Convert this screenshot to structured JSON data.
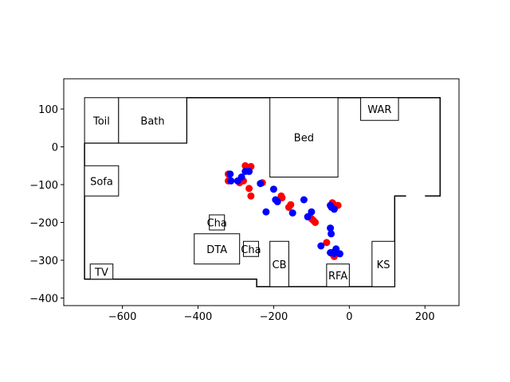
{
  "chart_data": {
    "type": "scatter",
    "title": "",
    "xlabel": "",
    "ylabel": "",
    "xlim": [
      -755,
      290
    ],
    "ylim": [
      -420,
      180
    ],
    "xticks": [
      -600,
      -400,
      -200,
      0,
      200
    ],
    "yticks": [
      100,
      0,
      -100,
      -200,
      -300,
      -400
    ],
    "xtick_labels": [
      "−600",
      "−400",
      "−200",
      "0",
      "200"
    ],
    "ytick_labels": [
      "100",
      "0",
      "−100",
      "−200",
      "−300",
      "−400"
    ],
    "grid": false,
    "colors": {
      "series_a": "#ff0000",
      "series_b": "#0000ff",
      "walls": "#000000"
    },
    "walls": [
      [
        [
          -700,
          10
        ],
        [
          -700,
          -350
        ],
        [
          -245,
          -350
        ],
        [
          -245,
          -370
        ],
        [
          120,
          -370
        ],
        [
          120,
          -130
        ],
        [
          150,
          -130
        ]
      ],
      [
        [
          -700,
          10
        ],
        [
          -430,
          10
        ],
        [
          -430,
          130
        ],
        [
          240,
          130
        ],
        [
          240,
          -130
        ],
        [
          200,
          -130
        ]
      ]
    ],
    "rooms": [
      {
        "label": "Toil",
        "x0": -700,
        "x1": -610,
        "y0": 10,
        "y1": 130
      },
      {
        "label": "Bath",
        "x0": -610,
        "x1": -430,
        "y0": 10,
        "y1": 130
      },
      {
        "label": "Bed",
        "x0": -210,
        "x1": -30,
        "y0": -80,
        "y1": 130
      },
      {
        "label": "WAR",
        "x0": 30,
        "x1": 130,
        "y0": 70,
        "y1": 130
      },
      {
        "label": "Sofa",
        "x0": -700,
        "x1": -610,
        "y0": -130,
        "y1": -50
      },
      {
        "label": "Cha",
        "x0": -370,
        "x1": -330,
        "y0": -220,
        "y1": -180
      },
      {
        "label": "DTA",
        "x0": -410,
        "x1": -290,
        "y0": -310,
        "y1": -230
      },
      {
        "label": "Cha",
        "x0": -280,
        "x1": -240,
        "y0": -290,
        "y1": -250
      },
      {
        "label": "CB",
        "x0": -210,
        "x1": -160,
        "y0": -370,
        "y1": -250
      },
      {
        "label": "RFA",
        "x0": -60,
        "x1": 0,
        "y0": -370,
        "y1": -310
      },
      {
        "label": "KS",
        "x0": 60,
        "x1": 120,
        "y0": -370,
        "y1": -250
      },
      {
        "label": "TV",
        "x0": -685,
        "x1": -625,
        "y0": -350,
        "y1": -310
      }
    ],
    "series": [
      {
        "color": "#ff0000",
        "x": [
          -320,
          -320,
          -290,
          -275,
          -260,
          -280,
          -265,
          -260,
          -230,
          -180,
          -178,
          -155,
          -160,
          -100,
          -95,
          -90,
          -60,
          -45,
          -43,
          -45,
          -45,
          -30,
          -40,
          -40
        ],
        "y": [
          -72,
          -90,
          -95,
          -50,
          -52,
          -90,
          -110,
          -130,
          -95,
          -130,
          -135,
          -153,
          -160,
          -190,
          -195,
          -200,
          -253,
          -148,
          -150,
          -280,
          -283,
          -155,
          -285,
          -290
        ]
      },
      {
        "color": "#0000ff",
        "x": [
          -315,
          -313,
          -295,
          -285,
          -275,
          -265,
          -235,
          -220,
          -200,
          -195,
          -190,
          -150,
          -120,
          -110,
          -100,
          -75,
          -50,
          -48,
          -50,
          -47,
          -40,
          -45,
          -40,
          -50,
          -35,
          -25
        ],
        "y": [
          -72,
          -90,
          -90,
          -80,
          -65,
          -65,
          -97,
          -172,
          -112,
          -140,
          -145,
          -175,
          -140,
          -185,
          -172,
          -262,
          -215,
          -230,
          -155,
          -160,
          -165,
          -280,
          -282,
          -280,
          -270,
          -283
        ]
      }
    ]
  }
}
